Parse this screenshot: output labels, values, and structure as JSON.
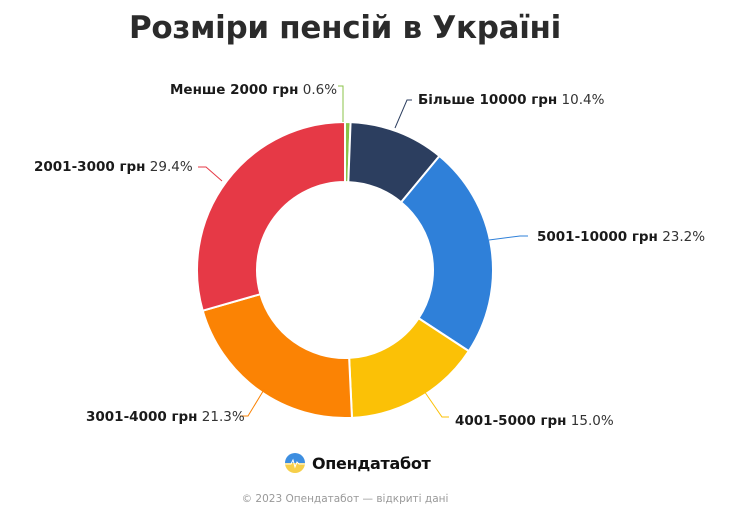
{
  "header": {
    "title": "Розміри пенсій в Україні"
  },
  "chart_data": {
    "type": "pie",
    "subtype": "donut",
    "title": "Розміри пенсій в Україні",
    "categories": [
      "Менше 2000 грн",
      "Більше 10000 грн",
      "5001-10000 грн",
      "4001-5000 грн",
      "3001-4000 грн",
      "2001-3000 грн"
    ],
    "values": [
      0.6,
      10.4,
      23.2,
      15.0,
      21.3,
      29.4
    ],
    "unit": "%",
    "colors": [
      "#8bc34a",
      "#2c3e5f",
      "#2f80d9",
      "#fbc106",
      "#fb8304",
      "#e63946"
    ],
    "labels": [
      {
        "category": "Менше 2000 грн",
        "value": "0.6%"
      },
      {
        "category": "Більше 10000 грн",
        "value": "10.4%"
      },
      {
        "category": "5001-10000 грн",
        "value": "23.2%"
      },
      {
        "category": "4001-5000 грн",
        "value": "15.0%"
      },
      {
        "category": "3001-4000 грн",
        "value": "21.3%"
      },
      {
        "category": "2001-3000 грн",
        "value": "29.4%"
      }
    ],
    "start_angle": "12 o'clock, clockwise",
    "legend": "none (callout labels)"
  },
  "footer": {
    "brand": "Опендатабот",
    "copyright": "© 2023 Опендатабот — відкриті дані"
  }
}
